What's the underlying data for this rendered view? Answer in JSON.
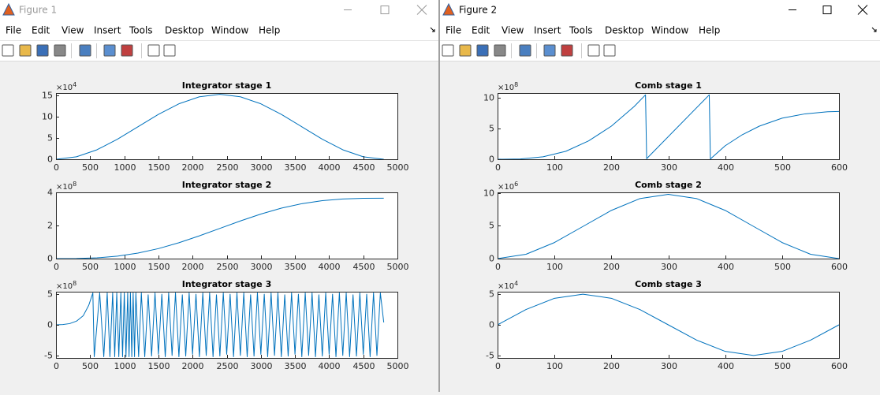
{
  "windows": [
    {
      "title": "Figure 1",
      "menus": [
        "File",
        "Edit",
        "View",
        "Insert",
        "Tools",
        "Desktop",
        "Window",
        "Help"
      ]
    },
    {
      "title": "Figure 2",
      "menus": [
        "File",
        "Edit",
        "View",
        "Insert",
        "Tools",
        "Desktop",
        "Window",
        "Help"
      ]
    }
  ],
  "chart_data": [
    {
      "type": "line",
      "title": "Integrator stage 1",
      "y_exponent": {
        "base": "×10",
        "power": "4"
      },
      "x": [
        0,
        300,
        600,
        900,
        1200,
        1500,
        1800,
        2100,
        2400,
        2700,
        3000,
        3300,
        3600,
        3900,
        4200,
        4500,
        4800
      ],
      "values": [
        0,
        0.58,
        2.22,
        4.7,
        7.6,
        10.5,
        12.98,
        14.62,
        15.2,
        14.62,
        12.98,
        10.5,
        7.6,
        4.7,
        2.22,
        0.58,
        0
      ],
      "color": "#0072bd",
      "xlim": [
        0,
        5000
      ],
      "xticks": [
        0,
        500,
        1000,
        1500,
        2000,
        2500,
        3000,
        3500,
        4000,
        4500,
        5000
      ],
      "ylim": [
        0,
        15.5
      ],
      "yticks": [
        0,
        5,
        10,
        15
      ]
    },
    {
      "type": "line",
      "title": "Integrator stage 2",
      "y_exponent": {
        "base": "×10",
        "power": "8"
      },
      "x": [
        0,
        300,
        600,
        900,
        1200,
        1500,
        1800,
        2100,
        2400,
        2700,
        3000,
        3300,
        3600,
        3900,
        4200,
        4500,
        4800
      ],
      "values": [
        0,
        0.006,
        0.046,
        0.147,
        0.332,
        0.604,
        0.958,
        1.375,
        1.825,
        2.275,
        2.692,
        3.046,
        3.318,
        3.502,
        3.604,
        3.644,
        3.65
      ],
      "color": "#0072bd",
      "xlim": [
        0,
        5000
      ],
      "xticks": [
        0,
        500,
        1000,
        1500,
        2000,
        2500,
        3000,
        3500,
        4000,
        4500,
        5000
      ],
      "ylim": [
        0,
        4
      ],
      "yticks": [
        0,
        2,
        4
      ]
    },
    {
      "type": "line",
      "title": "Integrator stage 3",
      "y_exponent": {
        "base": "×10",
        "power": "8"
      },
      "x": [
        0,
        100,
        200,
        300,
        400,
        480,
        540,
        560,
        640,
        700,
        750,
        790,
        830,
        860,
        890,
        920,
        950,
        975,
        1000,
        1025,
        1050,
        1070,
        1090,
        1110,
        1130,
        1150,
        1170,
        1210,
        1250,
        1300,
        1350,
        1400,
        1450,
        1500,
        1550,
        1600,
        1650,
        1700,
        1750,
        1800,
        1850,
        1900,
        1950,
        2000,
        2050,
        2100,
        2150,
        2200,
        2250,
        2300,
        2350,
        2400,
        2450,
        2500,
        2550,
        2600,
        2650,
        2700,
        2750,
        2800,
        2850,
        2900,
        2950,
        3000,
        3050,
        3100,
        3150,
        3200,
        3250,
        3300,
        3350,
        3400,
        3450,
        3500,
        3550,
        3600,
        3650,
        3700,
        3750,
        3800,
        3850,
        3900,
        3950,
        4000,
        4050,
        4100,
        4150,
        4200,
        4250,
        4300,
        4350,
        4400,
        4450,
        4500,
        4550,
        4600,
        4650,
        4700,
        4750,
        4800
      ],
      "values": [
        0,
        0.05,
        0.2,
        0.6,
        1.5,
        3.2,
        5.2,
        -5.2,
        5.2,
        -5.2,
        5.2,
        -5.2,
        5.2,
        -5.2,
        5.2,
        -5.2,
        5.2,
        -5.2,
        5.2,
        -5.2,
        5.2,
        -5.2,
        5.2,
        -5.2,
        5.2,
        -5.2,
        5.2,
        -5.2,
        5.2,
        -5.2,
        4.9,
        -5.1,
        5.2,
        -4.8,
        5.0,
        -5.2,
        5.2,
        -5.0,
        5.2,
        -5.2,
        4.9,
        -5.1,
        5.2,
        -4.8,
        5.0,
        -5.2,
        5.2,
        -5.0,
        5.2,
        -5.2,
        4.9,
        -5.1,
        5.2,
        -4.8,
        5.0,
        -5.2,
        5.2,
        -5.0,
        5.2,
        -5.2,
        4.9,
        -5.1,
        5.2,
        -4.8,
        5.0,
        -5.2,
        5.2,
        -5.0,
        5.2,
        -5.2,
        4.9,
        -5.1,
        5.2,
        -4.8,
        5.0,
        -5.2,
        5.2,
        -5.0,
        5.2,
        -5.2,
        4.9,
        -5.1,
        5.2,
        -4.8,
        5.0,
        -5.2,
        5.2,
        -5.0,
        5.2,
        -5.2,
        4.9,
        -5.1,
        5.2,
        -4.8,
        5.0,
        -5.2,
        5.2,
        -5.0,
        5.2,
        0.4
      ],
      "color": "#0072bd",
      "xlim": [
        0,
        5000
      ],
      "xticks": [
        0,
        500,
        1000,
        1500,
        2000,
        2500,
        3000,
        3500,
        4000,
        4500,
        5000
      ],
      "ylim": [
        -5.4,
        5.4
      ],
      "yticks": [
        -5,
        0,
        5
      ]
    },
    {
      "type": "line",
      "title": "Comb stage 1",
      "y_exponent": {
        "base": "×10",
        "power": "8"
      },
      "x": [
        0,
        40,
        80,
        120,
        160,
        200,
        240,
        260,
        262,
        372,
        374,
        400,
        430,
        460,
        500,
        540,
        580,
        600
      ],
      "values": [
        0,
        0.05,
        0.4,
        1.3,
        3.0,
        5.4,
        8.6,
        10.5,
        0.1,
        10.5,
        0.05,
        2.2,
        4.0,
        5.4,
        6.7,
        7.4,
        7.75,
        7.8
      ],
      "color": "#0072bd",
      "xlim": [
        0,
        600
      ],
      "xticks": [
        0,
        100,
        200,
        300,
        400,
        500,
        600
      ],
      "ylim": [
        0,
        10.8
      ],
      "yticks": [
        0,
        5,
        10
      ]
    },
    {
      "type": "line",
      "title": "Comb stage 2",
      "y_exponent": {
        "base": "×10",
        "power": "6"
      },
      "x": [
        0,
        50,
        100,
        150,
        200,
        250,
        300,
        350,
        400,
        450,
        500,
        550,
        600
      ],
      "values": [
        0,
        0.66,
        2.45,
        4.9,
        7.35,
        9.15,
        9.8,
        9.15,
        7.35,
        4.9,
        2.45,
        0.66,
        0
      ],
      "color": "#0072bd",
      "xlim": [
        0,
        600
      ],
      "xticks": [
        0,
        100,
        200,
        300,
        400,
        500,
        600
      ],
      "ylim": [
        0,
        10.1
      ],
      "yticks": [
        0,
        5,
        10
      ]
    },
    {
      "type": "line",
      "title": "Comb stage 3",
      "y_exponent": {
        "base": "×10",
        "power": "4"
      },
      "x": [
        0,
        50,
        100,
        150,
        200,
        250,
        300,
        350,
        400,
        450,
        500,
        550,
        600
      ],
      "values": [
        0,
        2.5,
        4.33,
        5,
        4.33,
        2.5,
        0,
        -2.5,
        -4.33,
        -5,
        -4.33,
        -2.5,
        0
      ],
      "color": "#0072bd",
      "xlim": [
        0,
        600
      ],
      "xticks": [
        0,
        100,
        200,
        300,
        400,
        500,
        600
      ],
      "ylim": [
        -5.4,
        5.4
      ],
      "yticks": [
        -5,
        0,
        5
      ]
    }
  ]
}
